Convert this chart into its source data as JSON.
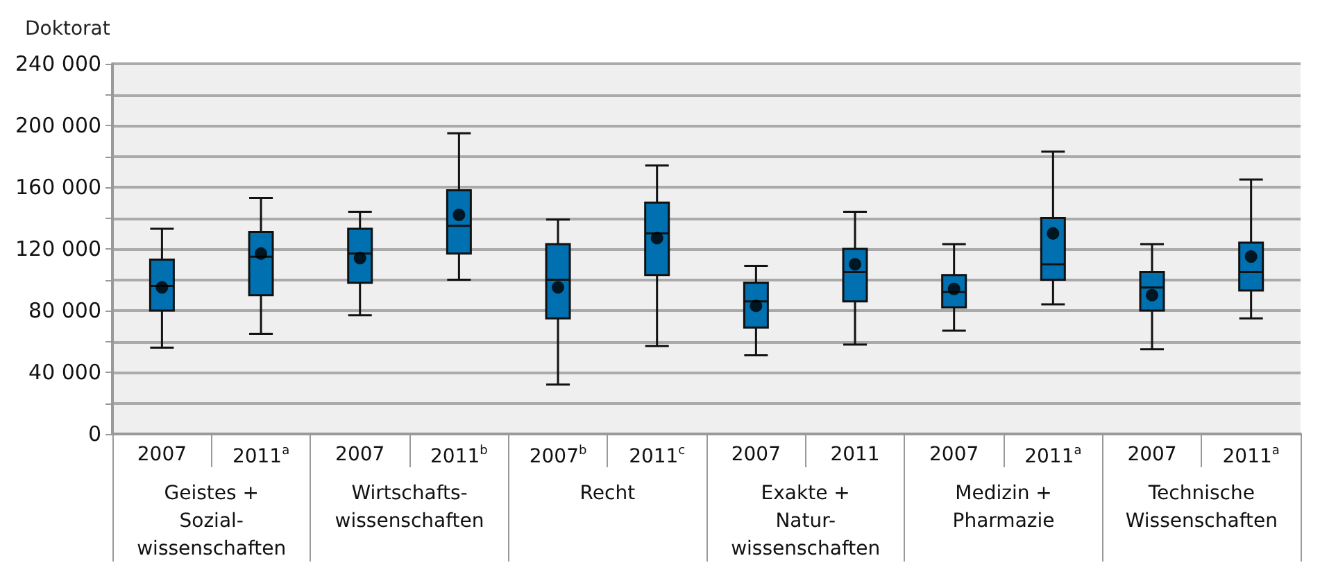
{
  "chart_data": {
    "type": "box",
    "ylabel": "Doktorat",
    "categories": [
      "2007",
      "2011$^{a}$",
      "2007",
      "2011$^{b}$",
      "2007$^{b}$",
      "2011$^{c}$",
      "2007",
      "2011",
      "2007",
      "2011$^{a}$",
      "2007",
      "2011$^{a}$"
    ],
    "annotations": [
      "Geistes +\nSozial-\nwissenschaften",
      "Wirtschafts-\nwissenschaften",
      "Recht",
      "Exakte +\nNatur-\nwissenschaften",
      "Medizin +\nPharmazie",
      "Technische\nWissenschaften"
    ],
    "series": [
      {
        "color": "#0070b0",
        "boxes": [
          {
            "low": 56000,
            "q1": 80000,
            "median": 96000,
            "q3": 113000,
            "high": 133000,
            "mean": 95000
          },
          {
            "low": 65000,
            "q1": 90000,
            "median": 115000,
            "q3": 131000,
            "high": 153000,
            "mean": 117000
          },
          {
            "low": 77000,
            "q1": 98000,
            "median": 117000,
            "q3": 133000,
            "high": 144000,
            "mean": 114000
          },
          {
            "low": 100000,
            "q1": 117000,
            "median": 135000,
            "q3": 158000,
            "high": 195000,
            "mean": 142000
          },
          {
            "low": 32000,
            "q1": 75000,
            "median": 100000,
            "q3": 123000,
            "high": 139000,
            "mean": 95000
          },
          {
            "low": 57000,
            "q1": 103000,
            "median": 130000,
            "q3": 150000,
            "high": 174000,
            "mean": 127000
          },
          {
            "low": 51000,
            "q1": 69000,
            "median": 86000,
            "q3": 98000,
            "high": 109000,
            "mean": 83000
          },
          {
            "low": 58000,
            "q1": 86000,
            "median": 105000,
            "q3": 120000,
            "high": 144000,
            "mean": 110000
          },
          {
            "low": 67000,
            "q1": 82000,
            "median": 92000,
            "q3": 103000,
            "high": 123000,
            "mean": 94000
          },
          {
            "low": 84000,
            "q1": 100000,
            "median": 110000,
            "q3": 140000,
            "high": 183000,
            "mean": 130000
          },
          {
            "low": 55000,
            "q1": 80000,
            "median": 95000,
            "q3": 105000,
            "high": 123000,
            "mean": 90000
          },
          {
            "low": 75000,
            "q1": 93000,
            "median": 105000,
            "q3": 124000,
            "high": 165000,
            "mean": 115000
          }
        ]
      }
    ],
    "ylim": [
      0,
      240000
    ],
    "yticks": [
      {
        "value": 0,
        "label": "0"
      },
      {
        "value": 20000,
        "label": null
      },
      {
        "value": 40000,
        "label": "40 000"
      },
      {
        "value": 60000,
        "label": null
      },
      {
        "value": 80000,
        "label": "80 000"
      },
      {
        "value": 100000,
        "label": null
      },
      {
        "value": 120000,
        "label": "120 000"
      },
      {
        "value": 140000,
        "label": null
      },
      {
        "value": 160000,
        "label": "160 000"
      },
      {
        "value": 180000,
        "label": null
      },
      {
        "value": 200000,
        "label": "200 000"
      },
      {
        "value": 220000,
        "label": null
      },
      {
        "value": 240000,
        "label": "240 000"
      }
    ],
    "grid": "y",
    "marker": "circle"
  }
}
